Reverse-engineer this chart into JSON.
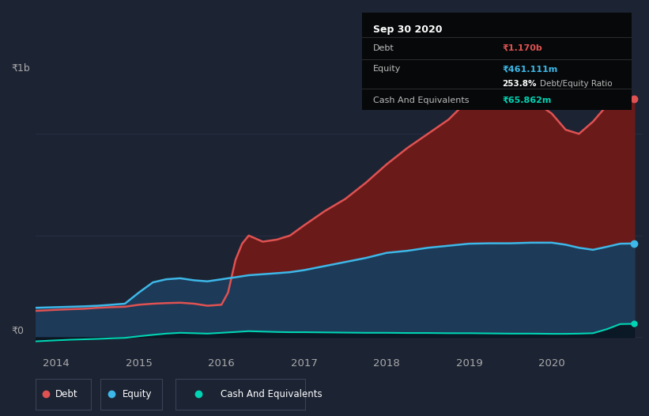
{
  "bg_color": "#1c2333",
  "plot_bg_color": "#1c2333",
  "grid_color": "#2a3145",
  "title_box": {
    "title": "Sep 30 2020",
    "debt_label": "Debt",
    "debt_value": "₹1.170b",
    "equity_label": "Equity",
    "equity_value": "₹461.111m",
    "ratio": "253.8%",
    "ratio_label": "Debt/Equity Ratio",
    "cash_label": "Cash And Equivalents",
    "cash_value": "₹65.862m"
  },
  "y_label_top": "₹1b",
  "y_label_bottom": "₹0",
  "x_ticks": [
    "2014",
    "2015",
    "2016",
    "2017",
    "2018",
    "2019",
    "2020"
  ],
  "debt_color": "#e05252",
  "equity_color": "#3db8e8",
  "cash_color": "#00d4b4",
  "debt_fill_color": "#6b1a1a",
  "equity_fill_color": "#1d3a58",
  "legend_box_border": "#3a4255",
  "years": [
    2013.75,
    2014.0,
    2014.17,
    2014.33,
    2014.5,
    2014.67,
    2014.83,
    2015.0,
    2015.17,
    2015.33,
    2015.5,
    2015.67,
    2015.83,
    2016.0,
    2016.08,
    2016.17,
    2016.25,
    2016.33,
    2016.5,
    2016.67,
    2016.83,
    2017.0,
    2017.25,
    2017.5,
    2017.75,
    2018.0,
    2018.25,
    2018.5,
    2018.75,
    2019.0,
    2019.25,
    2019.5,
    2019.75,
    2020.0,
    2020.17,
    2020.33,
    2020.5,
    2020.67,
    2020.83,
    2021.0
  ],
  "debt": [
    0.13,
    0.135,
    0.138,
    0.14,
    0.145,
    0.148,
    0.15,
    0.16,
    0.165,
    0.168,
    0.17,
    0.165,
    0.155,
    0.16,
    0.22,
    0.38,
    0.46,
    0.5,
    0.47,
    0.48,
    0.5,
    0.55,
    0.62,
    0.68,
    0.76,
    0.85,
    0.93,
    1.0,
    1.07,
    1.17,
    1.19,
    1.2,
    1.17,
    1.1,
    1.02,
    1.0,
    1.06,
    1.14,
    1.17,
    1.17
  ],
  "equity": [
    0.145,
    0.148,
    0.15,
    0.152,
    0.155,
    0.16,
    0.165,
    0.22,
    0.27,
    0.285,
    0.29,
    0.28,
    0.275,
    0.285,
    0.29,
    0.295,
    0.3,
    0.305,
    0.31,
    0.315,
    0.32,
    0.33,
    0.35,
    0.37,
    0.39,
    0.415,
    0.425,
    0.44,
    0.45,
    0.46,
    0.462,
    0.462,
    0.465,
    0.465,
    0.455,
    0.44,
    0.43,
    0.445,
    0.46,
    0.461
  ],
  "cash": [
    -0.02,
    -0.015,
    -0.012,
    -0.01,
    -0.008,
    -0.005,
    -0.003,
    0.005,
    0.012,
    0.018,
    0.022,
    0.02,
    0.018,
    0.022,
    0.024,
    0.026,
    0.028,
    0.03,
    0.028,
    0.026,
    0.025,
    0.025,
    0.024,
    0.023,
    0.022,
    0.022,
    0.021,
    0.021,
    0.02,
    0.02,
    0.019,
    0.018,
    0.018,
    0.017,
    0.017,
    0.018,
    0.02,
    0.04,
    0.065,
    0.066
  ]
}
